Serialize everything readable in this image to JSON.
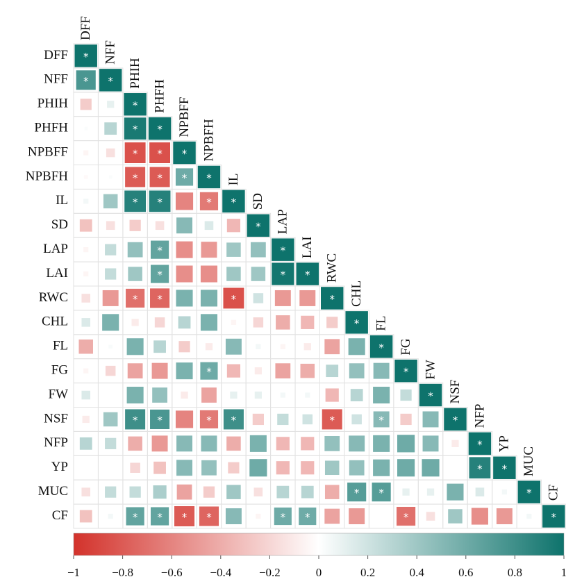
{
  "chart_data": {
    "type": "corrplot",
    "variables": [
      "DFF",
      "NFF",
      "PHIH",
      "PHFH",
      "NPBFF",
      "NPBFH",
      "IL",
      "SD",
      "LAP",
      "LAI",
      "RWC",
      "CHL",
      "FL",
      "FG",
      "FW",
      "NSF",
      "NFP",
      "YP",
      "MUC",
      "CF"
    ],
    "values": [
      [
        1
      ],
      [
        0.75,
        1
      ],
      [
        -0.25,
        0.1,
        1
      ],
      [
        0.02,
        0.3,
        0.95,
        1
      ],
      [
        -0.05,
        -0.15,
        -0.85,
        -0.85,
        1
      ],
      [
        -0.03,
        0.02,
        -0.8,
        -0.8,
        0.6,
        1
      ],
      [
        0.05,
        0.4,
        0.9,
        0.9,
        -0.6,
        -0.65,
        1
      ],
      [
        -0.3,
        -0.15,
        -0.25,
        -0.15,
        0.5,
        0.15,
        -0.35,
        1
      ],
      [
        -0.05,
        0.25,
        0.45,
        0.65,
        -0.55,
        -0.5,
        0.4,
        0.45,
        1
      ],
      [
        -0.05,
        0.25,
        0.4,
        0.65,
        -0.55,
        -0.55,
        0.4,
        0.4,
        0.98,
        1
      ],
      [
        -0.15,
        -0.5,
        -0.7,
        -0.75,
        0.55,
        0.55,
        -0.85,
        0.2,
        -0.5,
        -0.5,
        1
      ],
      [
        0.15,
        0.55,
        -0.1,
        -0.2,
        0.3,
        0.55,
        -0.05,
        -0.2,
        -0.4,
        -0.35,
        -0.25,
        1
      ],
      [
        -0.4,
        0.03,
        0.55,
        0.3,
        -0.25,
        -0.1,
        0.5,
        0.05,
        -0.05,
        -0.1,
        -0.45,
        0.55,
        1
      ],
      [
        -0.05,
        -0.2,
        -0.45,
        -0.5,
        0.55,
        0.6,
        -0.35,
        -0.1,
        -0.45,
        -0.4,
        0.3,
        0.45,
        0.5,
        1
      ],
      [
        0.15,
        0,
        0.55,
        0.45,
        -0.1,
        -0.45,
        0.1,
        0.1,
        0.05,
        0.05,
        -0.35,
        0.3,
        0.55,
        0.25,
        1
      ],
      [
        -0.1,
        0.4,
        0.8,
        0.75,
        -0.6,
        -0.65,
        0.8,
        -0.25,
        0.25,
        0.2,
        -0.8,
        0.2,
        0.5,
        -0.25,
        0.5,
        1
      ],
      [
        0.3,
        0.25,
        -0.4,
        -0.5,
        0.5,
        0.5,
        -0.4,
        0.55,
        -0.35,
        -0.35,
        0.45,
        0.5,
        0.55,
        0.6,
        0.5,
        -0.1,
        1
      ],
      [
        0,
        0,
        -0.2,
        -0.3,
        0.5,
        0.45,
        -0.25,
        0.6,
        -0.35,
        -0.35,
        0.4,
        0.45,
        0.55,
        0.6,
        0.6,
        0,
        0.9,
        1
      ],
      [
        -0.15,
        0.25,
        0.25,
        0.35,
        -0.45,
        -0.25,
        0.4,
        -0.15,
        0.3,
        0.3,
        -0.4,
        0.7,
        0.7,
        0.1,
        0.1,
        0.55,
        0.15,
        0.05,
        1
      ],
      [
        -0.3,
        0.05,
        0.65,
        0.65,
        -0.8,
        -0.75,
        0.5,
        -0.05,
        0.6,
        0.6,
        -0.45,
        -0.5,
        0,
        -0.7,
        -0.15,
        0.4,
        -0.55,
        -0.5,
        0.05,
        1
      ]
    ],
    "significant": [
      [
        true
      ],
      [
        true,
        true
      ],
      [
        false,
        false,
        true
      ],
      [
        false,
        false,
        true,
        true
      ],
      [
        false,
        false,
        true,
        true,
        true
      ],
      [
        false,
        false,
        true,
        true,
        true,
        true
      ],
      [
        false,
        false,
        true,
        true,
        false,
        true,
        true
      ],
      [
        false,
        false,
        false,
        false,
        false,
        false,
        false,
        true
      ],
      [
        false,
        false,
        false,
        true,
        false,
        false,
        false,
        false,
        true
      ],
      [
        false,
        false,
        false,
        true,
        false,
        false,
        false,
        false,
        true,
        true
      ],
      [
        false,
        false,
        true,
        true,
        false,
        false,
        true,
        false,
        false,
        false,
        true
      ],
      [
        false,
        false,
        false,
        false,
        false,
        false,
        false,
        false,
        false,
        false,
        false,
        true
      ],
      [
        false,
        false,
        false,
        false,
        false,
        false,
        false,
        false,
        false,
        false,
        false,
        false,
        true
      ],
      [
        false,
        false,
        false,
        false,
        false,
        true,
        false,
        false,
        false,
        false,
        false,
        false,
        false,
        true
      ],
      [
        false,
        false,
        false,
        false,
        false,
        false,
        false,
        false,
        false,
        false,
        false,
        false,
        false,
        false,
        true
      ],
      [
        false,
        false,
        true,
        true,
        false,
        true,
        true,
        false,
        false,
        false,
        true,
        false,
        true,
        false,
        false,
        true
      ],
      [
        false,
        false,
        false,
        false,
        false,
        false,
        false,
        false,
        false,
        false,
        false,
        false,
        false,
        false,
        false,
        false,
        true
      ],
      [
        false,
        false,
        false,
        false,
        false,
        false,
        false,
        false,
        false,
        false,
        false,
        false,
        false,
        false,
        false,
        false,
        true,
        true
      ],
      [
        false,
        false,
        false,
        false,
        false,
        false,
        false,
        false,
        false,
        false,
        false,
        true,
        true,
        false,
        false,
        false,
        false,
        false,
        true
      ],
      [
        false,
        false,
        true,
        true,
        true,
        true,
        false,
        false,
        true,
        true,
        false,
        false,
        false,
        true,
        false,
        false,
        false,
        false,
        false,
        true
      ]
    ],
    "significance_marker": "*",
    "colors": {
      "low": "#d3322b",
      "mid": "#ffffff",
      "high": "#0e736c"
    },
    "clim": [
      -1,
      1
    ],
    "cticks": [
      {
        "value": -1,
        "label": "−1"
      },
      {
        "value": -0.8,
        "label": "−0.8"
      },
      {
        "value": -0.6,
        "label": "−0.6"
      },
      {
        "value": -0.4,
        "label": "−0.4"
      },
      {
        "value": -0.2,
        "label": "−0.2"
      },
      0,
      0.2,
      0.4,
      0.6,
      0.8,
      1
    ]
  }
}
